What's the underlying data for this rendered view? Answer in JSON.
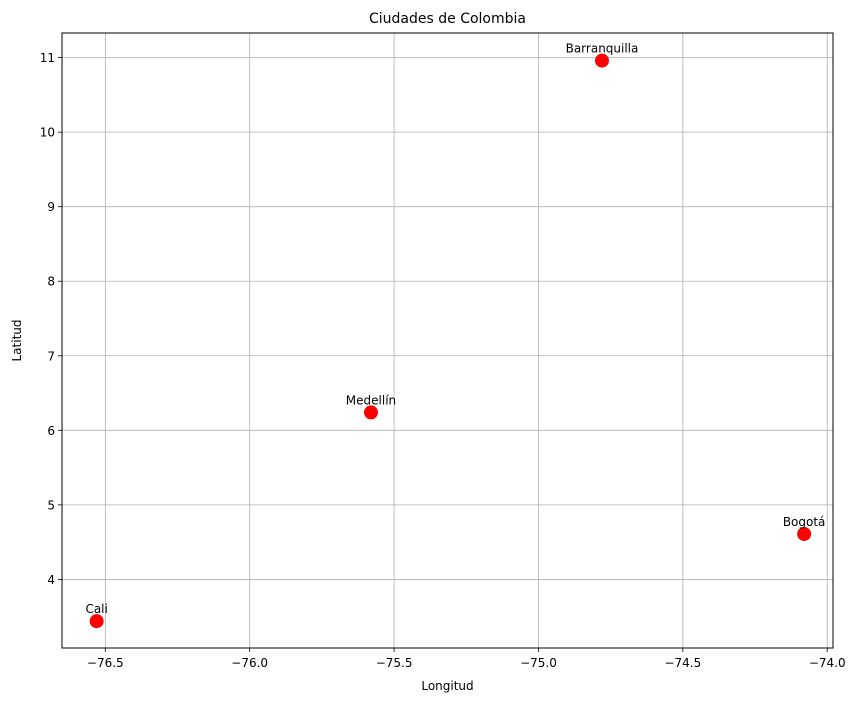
{
  "chart_data": {
    "type": "scatter",
    "title": "Ciudades de Colombia",
    "xlabel": "Longitud",
    "ylabel": "Latitud",
    "xlim": [
      -76.65,
      -73.98
    ],
    "ylim": [
      3.08,
      11.33
    ],
    "grid": true,
    "xticks": [
      -76.5,
      -76.0,
      -75.5,
      -75.0,
      -74.5,
      -74.0
    ],
    "xtick_labels": [
      "−76.5",
      "−76.0",
      "−75.5",
      "−75.0",
      "−74.5",
      "−74.0"
    ],
    "yticks": [
      4,
      5,
      6,
      7,
      8,
      9,
      10,
      11
    ],
    "ytick_labels": [
      "4",
      "5",
      "6",
      "7",
      "8",
      "9",
      "10",
      "11"
    ],
    "marker_color": "#ff0000",
    "points": [
      {
        "label": "Bogotá",
        "x": -74.08,
        "y": 4.61
      },
      {
        "label": "Medellín",
        "x": -75.58,
        "y": 6.24
      },
      {
        "label": "Cali",
        "x": -76.53,
        "y": 3.44
      },
      {
        "label": "Barranquilla",
        "x": -74.78,
        "y": 10.96
      }
    ]
  }
}
